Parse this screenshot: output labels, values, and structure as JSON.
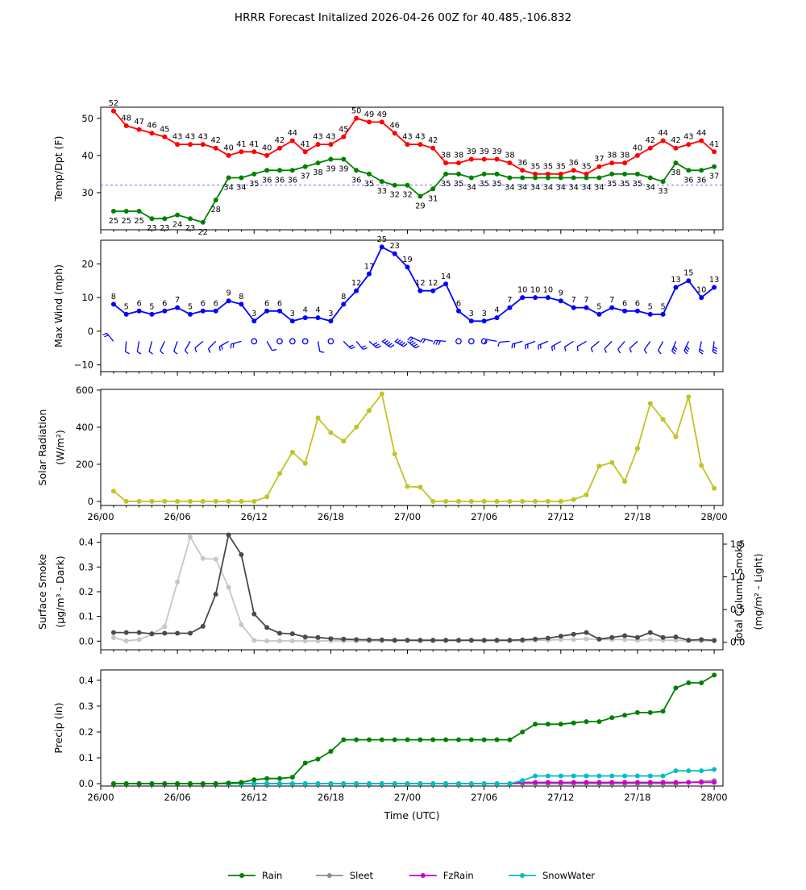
{
  "title": "HRRR Forecast Initalized 2026-04-26 00Z for 40.485,-106.832",
  "time_axis": {
    "label": "Time (UTC)",
    "start_hour": 1,
    "step_hours": 1,
    "xlim_max": 48.69,
    "major_tick_hours": [
      0,
      6,
      12,
      18,
      24,
      30,
      36,
      42,
      48
    ],
    "major_tick_labels": [
      "26/00",
      "26/06",
      "26/12",
      "26/18",
      "27/00",
      "27/06",
      "27/12",
      "27/18",
      "28/00"
    ]
  },
  "chart_data": [
    {
      "id": "temp-dpt",
      "type": "line",
      "ylabel_lines": [
        "Temp/Dpt (F)"
      ],
      "ytick_values": [
        30,
        40,
        50
      ],
      "ytick_labels": [
        "30",
        "40",
        "50"
      ],
      "ylim": [
        20,
        53
      ],
      "reference_line": {
        "value": 32,
        "color": "#5555ff",
        "style": "dashed",
        "meaning": "freezing-line"
      },
      "series": [
        {
          "name": "Temperature",
          "color": "#ff0000",
          "point_labels": "above",
          "values": [
            52,
            48,
            47,
            46,
            45,
            43,
            43,
            43,
            42,
            40,
            41,
            41,
            40,
            42,
            44,
            41,
            43,
            43,
            45,
            50,
            49,
            49,
            46,
            43,
            43,
            42,
            38,
            38,
            39,
            39,
            39,
            38,
            36,
            35,
            35,
            35,
            36,
            35,
            37,
            38,
            38,
            40,
            42,
            44,
            42,
            43,
            44,
            41
          ]
        },
        {
          "name": "Dewpoint",
          "color": "#008000",
          "point_labels": "below",
          "values": [
            25,
            25,
            25,
            23,
            23,
            24,
            23,
            22,
            28,
            34,
            34,
            35,
            36,
            36,
            36,
            37,
            38,
            39,
            39,
            36,
            35,
            33,
            32,
            32,
            29,
            31,
            35,
            35,
            34,
            35,
            35,
            34,
            34,
            34,
            34,
            34,
            34,
            34,
            34,
            35,
            35,
            35,
            34,
            33,
            38,
            36,
            36,
            37
          ]
        }
      ]
    },
    {
      "id": "max-wind",
      "type": "line",
      "ylabel_lines": [
        "Max Wind (mph)"
      ],
      "ytick_values": [
        -10,
        0,
        10,
        20
      ],
      "ytick_labels": [
        "−10",
        "0",
        "10",
        "20"
      ],
      "ylim": [
        -12,
        27
      ],
      "series": [
        {
          "name": "Max Wind",
          "color": "#0000ff",
          "point_labels": "above",
          "values": [
            8,
            5,
            6,
            5,
            6,
            7,
            5,
            6,
            6,
            9,
            8,
            3,
            6,
            6,
            3,
            4,
            4,
            3,
            8,
            12,
            17,
            25,
            23,
            19,
            12,
            12,
            14,
            6,
            3,
            3,
            4,
            7,
            10,
            10,
            10,
            9,
            7,
            7,
            5,
            7,
            6,
            6,
            5,
            5,
            13,
            15,
            10,
            13
          ]
        }
      ],
      "wind_barbs": {
        "y": -3,
        "color": "#0000ff",
        "items": [
          {
            "a": 230
          },
          {
            "a": 95
          },
          {
            "a": 100
          },
          {
            "a": 105
          },
          {
            "a": 115
          },
          {
            "a": 110
          },
          {
            "a": 120
          },
          {
            "a": 140
          },
          {
            "a": 135
          },
          {
            "a": 150
          },
          {
            "a": 165
          },
          {
            "c": 1
          },
          {
            "a": 60
          },
          {
            "c": 1
          },
          {
            "c": 1
          },
          {
            "c": 1
          },
          {
            "a": 80
          },
          {
            "c": 1
          },
          {
            "a": 45
          },
          {
            "a": 50
          },
          {
            "a": 40
          },
          {
            "a": 35
          },
          {
            "a": 30
          },
          {
            "a": 40
          },
          {
            "a": 205
          },
          {
            "a": 195
          },
          {
            "a": 185
          },
          {
            "c": 1
          },
          {
            "c": 1
          },
          {
            "c": 1
          },
          {
            "a": 190
          },
          {
            "a": 175
          },
          {
            "a": 165
          },
          {
            "a": 160
          },
          {
            "a": 158
          },
          {
            "a": 150
          },
          {
            "a": 148
          },
          {
            "a": 150
          },
          {
            "a": 140
          },
          {
            "a": 135
          },
          {
            "a": 130
          },
          {
            "a": 138
          },
          {
            "a": 125
          },
          {
            "a": 118
          },
          {
            "a": 112
          },
          {
            "a": 115
          },
          {
            "a": 102
          },
          {
            "a": 98
          }
        ]
      }
    },
    {
      "id": "solar",
      "type": "line",
      "ylabel_lines": [
        "Solar Radiation",
        "(W/m²)"
      ],
      "ytick_values": [
        0,
        200,
        400,
        600
      ],
      "ytick_labels": [
        "0",
        "200",
        "400",
        "600"
      ],
      "ylim": [
        -22,
        604
      ],
      "x_tick_labels": true,
      "series": [
        {
          "name": "Solar Radiation",
          "color": "#c2c226",
          "values": [
            55,
            0,
            0,
            0,
            0,
            0,
            0,
            0,
            0,
            0,
            0,
            0,
            25,
            150,
            265,
            205,
            450,
            370,
            325,
            400,
            490,
            580,
            255,
            80,
            77,
            0,
            0,
            0,
            0,
            0,
            0,
            0,
            0,
            0,
            0,
            0,
            10,
            35,
            190,
            210,
            108,
            286,
            528,
            442,
            348,
            564,
            194,
            70
          ]
        }
      ]
    },
    {
      "id": "smoke",
      "type": "line",
      "ylabel_lines": [
        "Surface Smoke",
        "(μg/m³ - Dark)"
      ],
      "ytick_values": [
        0,
        0.1,
        0.2,
        0.3,
        0.4
      ],
      "ytick_labels": [
        "0.0",
        "0.1",
        "0.2",
        "0.3",
        "0.4"
      ],
      "ylim": [
        -0.035,
        0.435
      ],
      "right_axis": {
        "label_lines": [
          "Total Column Smoke",
          "(mg/m² - Light)"
        ],
        "ytick_values": [
          0,
          0.5,
          1.0,
          1.5
        ],
        "ytick_labels": [
          "0.0",
          "0.5",
          "1.0",
          "1.5"
        ],
        "ylim": [
          -0.115,
          1.66
        ]
      },
      "series": [
        {
          "name": "Total Column Smoke",
          "color": "#c6c6c6",
          "axis": "right",
          "values": [
            0.07,
            0.02,
            0.04,
            0.12,
            0.24,
            0.92,
            1.61,
            1.28,
            1.27,
            0.84,
            0.27,
            0.03,
            0.02,
            0.02,
            0.02,
            0.02,
            0.02,
            0.02,
            0.02,
            0.02,
            0.02,
            0.02,
            0.02,
            0.02,
            0.02,
            0.02,
            0.02,
            0.02,
            0.02,
            0.02,
            0.02,
            0.02,
            0.02,
            0.03,
            0.03,
            0.04,
            0.04,
            0.05,
            0.04,
            0.04,
            0.04,
            0.03,
            0.04,
            0.03,
            0.03,
            0.02,
            0.02,
            0.02
          ]
        },
        {
          "name": "Surface Smoke",
          "color": "#4a4a4a",
          "axis": "left",
          "values": [
            0.035,
            0.035,
            0.035,
            0.03,
            0.032,
            0.032,
            0.032,
            0.06,
            0.19,
            0.43,
            0.35,
            0.11,
            0.055,
            0.032,
            0.03,
            0.017,
            0.015,
            0.01,
            0.008,
            0.006,
            0.005,
            0.005,
            0.004,
            0.004,
            0.004,
            0.004,
            0.004,
            0.004,
            0.004,
            0.004,
            0.004,
            0.004,
            0.005,
            0.008,
            0.012,
            0.02,
            0.028,
            0.035,
            0.008,
            0.015,
            0.022,
            0.015,
            0.035,
            0.015,
            0.017,
            0.004,
            0.006,
            0.003
          ]
        }
      ]
    },
    {
      "id": "precip",
      "type": "line",
      "ylabel_lines": [
        "Precip (in)"
      ],
      "ytick_values": [
        0,
        0.1,
        0.2,
        0.3,
        0.4
      ],
      "ytick_labels": [
        "0.0",
        "0.1",
        "0.2",
        "0.3",
        "0.4"
      ],
      "ylim": [
        -0.009,
        0.44
      ],
      "x_tick_labels": true,
      "xlabel": "Time (UTC)",
      "series": [
        {
          "name": "Sleet",
          "color": "#8f8a95",
          "values": [
            0,
            0,
            0,
            0,
            0,
            0,
            0,
            0,
            0,
            0,
            0,
            0,
            0,
            0,
            0,
            0,
            0,
            0,
            0,
            0,
            0,
            0,
            0,
            0,
            0,
            0,
            0,
            0,
            0,
            0,
            0,
            0,
            0,
            0,
            0,
            0,
            0,
            0,
            0,
            0,
            0,
            0,
            0,
            0,
            0,
            0.005,
            0.008,
            0.012
          ]
        },
        {
          "name": "FzRain",
          "color": "#cc00cc",
          "values": [
            0,
            0,
            0,
            0,
            0,
            0,
            0,
            0,
            0,
            0,
            0,
            0,
            0,
            0,
            0,
            0,
            0,
            0,
            0,
            0,
            0,
            0,
            0,
            0,
            0,
            0,
            0,
            0,
            0,
            0,
            0,
            0,
            0.005,
            0.005,
            0.005,
            0.005,
            0.005,
            0.005,
            0.005,
            0.005,
            0.005,
            0.005,
            0.005,
            0.005,
            0.005,
            0.005,
            0.005,
            0.005
          ]
        },
        {
          "name": "SnowWater",
          "color": "#00bfbf",
          "values": [
            0,
            0,
            0,
            0,
            0,
            0,
            0,
            0,
            0,
            0,
            0,
            0,
            0,
            0,
            0,
            0,
            0,
            0,
            0,
            0,
            0,
            0,
            0,
            0,
            0,
            0,
            0,
            0,
            0,
            0,
            0,
            0,
            0.012,
            0.03,
            0.03,
            0.03,
            0.03,
            0.03,
            0.03,
            0.03,
            0.03,
            0.03,
            0.03,
            0.03,
            0.05,
            0.05,
            0.05,
            0.055
          ]
        },
        {
          "name": "Rain",
          "color": "#008000",
          "values": [
            0,
            0,
            0,
            0,
            0,
            0,
            0,
            0,
            0,
            0.003,
            0.005,
            0.015,
            0.02,
            0.02,
            0.025,
            0.08,
            0.095,
            0.125,
            0.17,
            0.17,
            0.17,
            0.17,
            0.17,
            0.17,
            0.17,
            0.17,
            0.17,
            0.17,
            0.17,
            0.17,
            0.17,
            0.17,
            0.2,
            0.23,
            0.23,
            0.23,
            0.235,
            0.24,
            0.24,
            0.255,
            0.265,
            0.275,
            0.275,
            0.28,
            0.37,
            0.39,
            0.39,
            0.42
          ]
        }
      ]
    }
  ],
  "legend": {
    "items": [
      {
        "label": "Rain",
        "color": "#008000"
      },
      {
        "label": "Sleet",
        "color": "#8f8a95"
      },
      {
        "label": "FzRain",
        "color": "#cc00cc"
      },
      {
        "label": "SnowWater",
        "color": "#00bfbf"
      }
    ]
  }
}
